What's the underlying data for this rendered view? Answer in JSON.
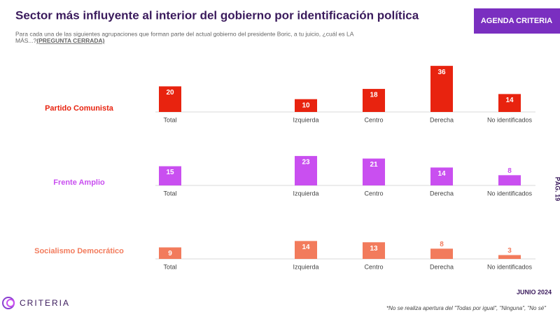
{
  "header": {
    "title": "Sector más influyente al interior del gobierno por identificación  política",
    "subtitle": [
      "Para cada una de las siguientes agrupaciones que forman parte del actual gobierno del presidente Boric, a tu juicio, ¿cuál es  LA",
      "MÁS...?"
    ],
    "question_type": "(PREGUNTA CERRADA)",
    "badge": "AGENDA CRITERIA"
  },
  "side_label": "PÁG. 19",
  "chart_data": [
    {
      "type": "bar",
      "title": "Partido Comunista",
      "color": "#e8230f",
      "categories": [
        "Total",
        "Izquierda",
        "Centro",
        "Derecha",
        "No identificados"
      ],
      "values": [
        20,
        10,
        18,
        36,
        14
      ]
    },
    {
      "type": "bar",
      "title": "Frente Amplio",
      "color": "#c94ff0",
      "categories": [
        "Total",
        "Izquierda",
        "Centro",
        "Derecha",
        "No identificados"
      ],
      "values": [
        15,
        23,
        21,
        14,
        8
      ]
    },
    {
      "type": "bar",
      "title": "Socialismo Democrático",
      "color": "#f27b5c",
      "categories": [
        "Total",
        "Izquierda",
        "Centro",
        "Derecha",
        "No identificados"
      ],
      "values": [
        9,
        14,
        13,
        8,
        3
      ]
    }
  ],
  "footer": {
    "logo": "CRITERIA",
    "date": "JUNIO 2024",
    "note": "*No se realiza apertura del \"Todas por igual\", \"Ninguna\", \"No sé\""
  }
}
